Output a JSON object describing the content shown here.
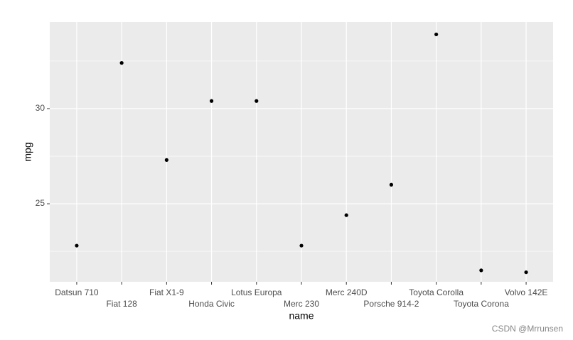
{
  "chart_data": {
    "type": "scatter",
    "x_label": "name",
    "y_label": "mpg",
    "categories": [
      "Datsun 710",
      "Fiat 128",
      "Fiat X1-9",
      "Honda Civic",
      "Lotus Europa",
      "Merc 230",
      "Merc 240D",
      "Porsche 914-2",
      "Toyota Corolla",
      "Toyota Corona",
      "Volvo 142E"
    ],
    "values": [
      22.8,
      32.4,
      27.3,
      30.4,
      30.4,
      22.8,
      24.4,
      26.0,
      33.9,
      21.5,
      21.4
    ],
    "color": "#000000",
    "ylim": [
      20.9,
      34.55
    ],
    "yticks": [
      25,
      30
    ],
    "y_minor_gridlines": [
      22.5,
      27.5,
      32.5
    ],
    "grid": true,
    "watermark": "CSDN @Mrrunsen"
  }
}
